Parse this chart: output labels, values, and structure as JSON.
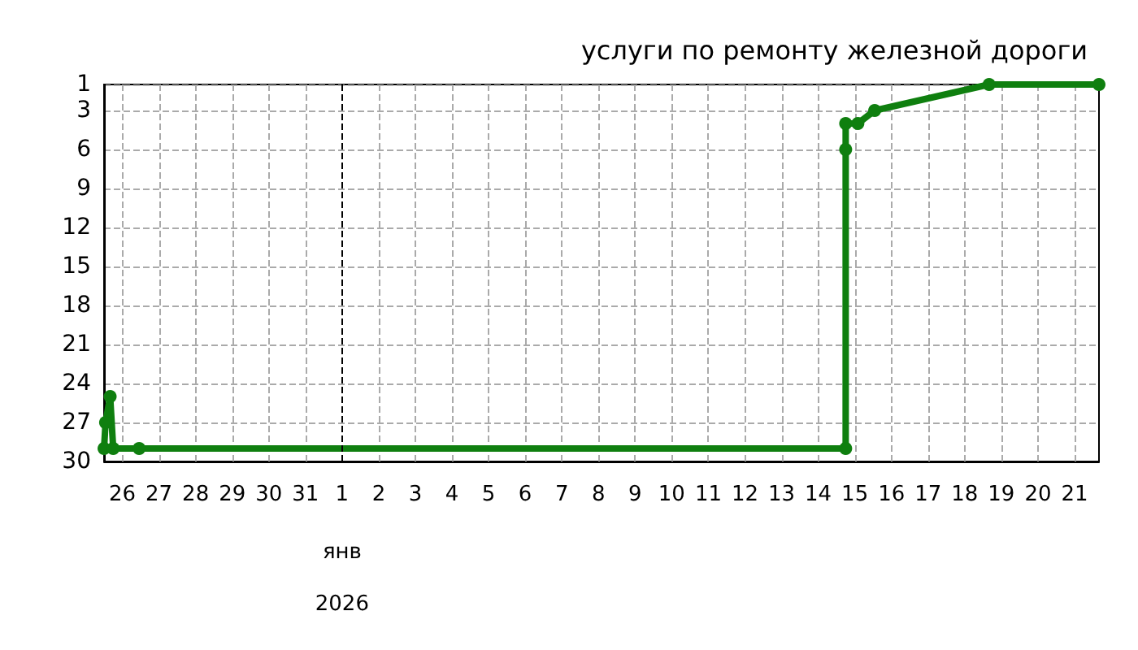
{
  "chart_data": {
    "type": "line",
    "title": "услуги по ремонту железной дороги",
    "x": [
      "2025-12-25T12:00",
      "2025-12-25T13:00",
      "2025-12-25T16:00",
      "2025-12-25T18:00",
      "2025-12-26T11:00",
      "2026-01-14T18:00",
      "2026-01-14T18:00",
      "2026-01-14T18:00",
      "2026-01-15T02:00",
      "2026-01-15T13:00",
      "2026-01-18T16:00",
      "2026-01-21T16:00"
    ],
    "series": [
      {
        "color": "#0f7f0f",
        "values": [
          29,
          27,
          25,
          29,
          29,
          29,
          6,
          4,
          4,
          3,
          1,
          1
        ]
      }
    ],
    "xlim": [
      "2025-12-25T12:00",
      "2026-01-21T16:00"
    ],
    "xticks": [
      {
        "value": "2025-12-26",
        "label": "26"
      },
      {
        "value": "2025-12-27",
        "label": "27"
      },
      {
        "value": "2025-12-28",
        "label": "28"
      },
      {
        "value": "2025-12-29",
        "label": "29"
      },
      {
        "value": "2025-12-30",
        "label": "30"
      },
      {
        "value": "2025-12-31",
        "label": "31"
      },
      {
        "value": "2026-01-01",
        "label": "1"
      },
      {
        "value": "2026-01-02",
        "label": "2"
      },
      {
        "value": "2026-01-03",
        "label": "3"
      },
      {
        "value": "2026-01-04",
        "label": "4"
      },
      {
        "value": "2026-01-05",
        "label": "5"
      },
      {
        "value": "2026-01-06",
        "label": "6"
      },
      {
        "value": "2026-01-07",
        "label": "7"
      },
      {
        "value": "2026-01-08",
        "label": "8"
      },
      {
        "value": "2026-01-09",
        "label": "9"
      },
      {
        "value": "2026-01-10",
        "label": "10"
      },
      {
        "value": "2026-01-11",
        "label": "11"
      },
      {
        "value": "2026-01-12",
        "label": "12"
      },
      {
        "value": "2026-01-13",
        "label": "13"
      },
      {
        "value": "2026-01-14",
        "label": "14"
      },
      {
        "value": "2026-01-15",
        "label": "15"
      },
      {
        "value": "2026-01-16",
        "label": "16"
      },
      {
        "value": "2026-01-17",
        "label": "17"
      },
      {
        "value": "2026-01-18",
        "label": "18"
      },
      {
        "value": "2026-01-19",
        "label": "19"
      },
      {
        "value": "2026-01-20",
        "label": "20"
      },
      {
        "value": "2026-01-21",
        "label": "21"
      }
    ],
    "ylim": [
      30,
      1
    ],
    "yticks": [
      1,
      3,
      6,
      9,
      12,
      15,
      18,
      21,
      24,
      27,
      30
    ],
    "ref_lines": [
      {
        "axis": "x",
        "value": "2026-01-01",
        "color": "#000000",
        "line_style": "dashed"
      }
    ],
    "annotations": [
      "янв",
      "2026"
    ],
    "grid": true,
    "marker": "circle",
    "line_style": "solid"
  }
}
